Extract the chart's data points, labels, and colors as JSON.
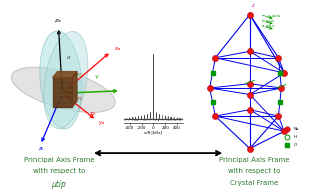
{
  "bg_color": "#ffffff",
  "left_label_line1": "Principal Axis Frame",
  "left_label_line2": "with respect to",
  "left_label_line3": "μtip",
  "right_label_line1": "Principal Axis Frame",
  "right_label_line2": "with respect to",
  "right_label_line3": "Crystal Frame",
  "label_color": "#2d7a2d",
  "text_fontsize": 5.0,
  "spectrum_color": "#444444",
  "crystal_blue": "#0000ee",
  "crystal_red": "#ee1111",
  "crystal_green": "#009900",
  "crystal_magenta": "#cc00cc",
  "crystal_pink": "#ff66bb",
  "axis_ticks": [
    "-400",
    "-200",
    "0",
    "200",
    "400"
  ],
  "axis_tick_vals": [
    -400,
    -200,
    0,
    200,
    400
  ],
  "xlabel": "ν/δ [kHz]"
}
